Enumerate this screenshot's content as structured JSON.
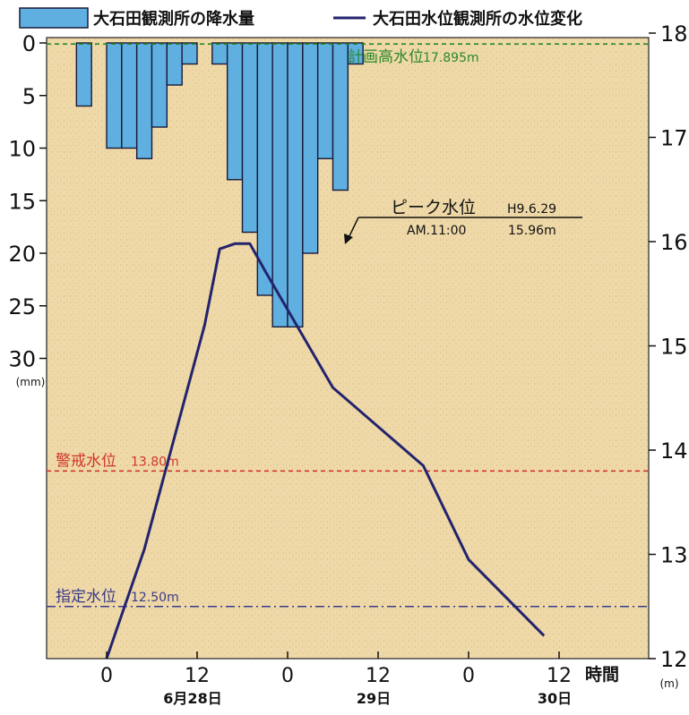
{
  "chart_data": {
    "type": "bar+line",
    "legend": {
      "rain_label": "大石田観測所の降水量",
      "level_label": "大石田水位観測所の水位変化",
      "placement": "top"
    },
    "colors": {
      "plot_bg": "#efd9a8",
      "bar_fill": "#5fb0e0",
      "bar_stroke": "#1a1a3a",
      "line": "#23236e",
      "planned": "#2a8a2a",
      "warning": "#d0362a",
      "designated": "#3a3a8a"
    },
    "x_axis": {
      "unit_label": "時間",
      "ticks": [
        "0",
        "12",
        "0",
        "12",
        "0",
        "12"
      ],
      "date_labels": [
        "6月28日",
        "29日",
        "30日"
      ]
    },
    "rainfall": {
      "unit_label": "(mm)",
      "ylim": [
        0,
        30
      ],
      "ticks": [
        "0",
        "5",
        "10",
        "15",
        "20",
        "25",
        "30"
      ],
      "values": [
        0,
        6,
        0,
        10,
        10,
        11,
        8,
        4,
        2,
        0,
        2,
        13,
        18,
        24,
        27,
        27,
        20,
        11,
        14,
        2
      ]
    },
    "water_level": {
      "unit_label": "(m)",
      "ylim": [
        12,
        18
      ],
      "ticks": [
        "12",
        "13",
        "14",
        "15",
        "16",
        "17",
        "18"
      ],
      "points": [
        {
          "h": 12,
          "v": 12.0
        },
        {
          "h": 17,
          "v": 13.05
        },
        {
          "h": 25,
          "v": 15.2
        },
        {
          "h": 27,
          "v": 15.93
        },
        {
          "h": 29,
          "v": 15.98
        },
        {
          "h": 31,
          "v": 15.98
        },
        {
          "h": 33,
          "v": 15.72
        },
        {
          "h": 42,
          "v": 14.6
        },
        {
          "h": 54,
          "v": 13.85
        },
        {
          "h": 60,
          "v": 12.95
        },
        {
          "h": 70,
          "v": 12.22
        }
      ]
    },
    "reference_lines": [
      {
        "id": "planned",
        "value": 17.895,
        "label": "計画高水位",
        "value_label": "17.895m"
      },
      {
        "id": "warning",
        "value": 13.8,
        "label": "警戒水位",
        "value_label": "13.80m"
      },
      {
        "id": "designated",
        "value": 12.5,
        "label": "指定水位",
        "value_label": "12.50m"
      }
    ],
    "annotation": {
      "title": "ピーク水位",
      "date_text": "H9.6.29",
      "time_text": "AM.11:00",
      "value_text": "15.96m"
    }
  }
}
